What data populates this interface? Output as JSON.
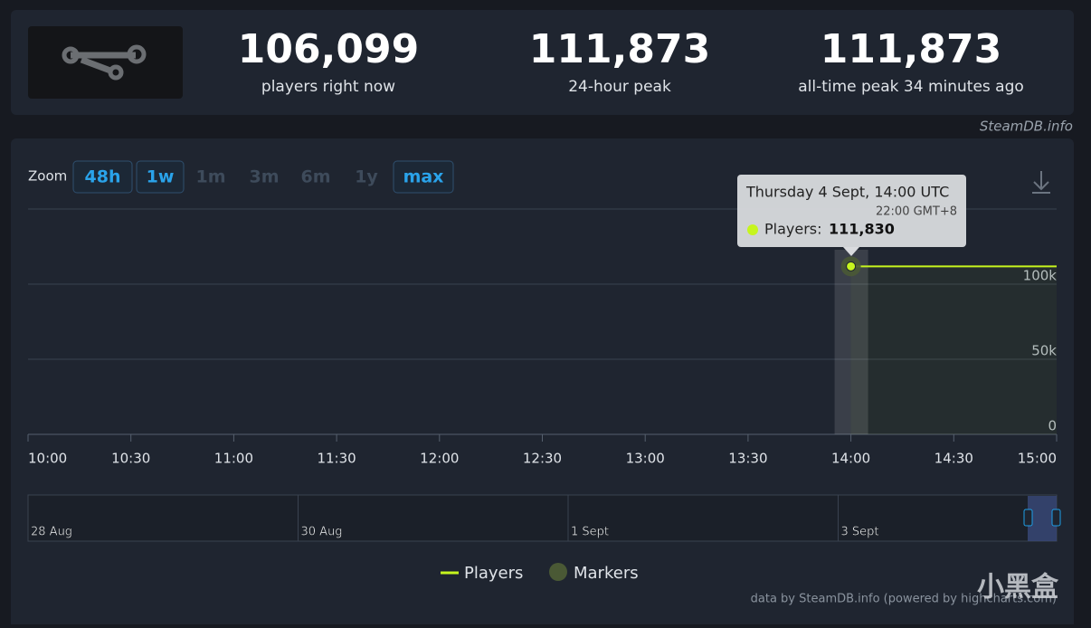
{
  "header": {
    "stats": [
      {
        "value": "106,099",
        "label": "players right now"
      },
      {
        "value": "111,873",
        "label": "24-hour peak"
      },
      {
        "value": "111,873",
        "label": "all-time peak 34 minutes ago"
      }
    ]
  },
  "site_link": "SteamDB.info",
  "zoom": {
    "label": "Zoom",
    "buttons": [
      "48h",
      "1w",
      "1m",
      "3m",
      "6m",
      "1y",
      "max"
    ],
    "active": [
      "48h",
      "1w",
      "max"
    ]
  },
  "tooltip": {
    "title": "Thursday 4 Sept, 14:00 UTC",
    "local_time": "22:00 GMT+8",
    "series_label": "Players:",
    "value": "111,830"
  },
  "chart_data": {
    "type": "line",
    "x": [
      "14:00",
      "15:00"
    ],
    "series": [
      {
        "name": "Players",
        "color": "#c6f51e",
        "values": [
          111830,
          111830
        ]
      }
    ],
    "markers": {
      "name": "Markers",
      "color": "#4a5935"
    },
    "xlim": [
      "10:00",
      "15:00"
    ],
    "xticks": [
      "10:00",
      "10:30",
      "11:00",
      "11:30",
      "12:00",
      "12:30",
      "13:00",
      "13:30",
      "14:00",
      "14:30",
      "15:00"
    ],
    "ylim": [
      0,
      150000
    ],
    "yticks": [
      0,
      {
        "value": 50000,
        "label": "50k"
      },
      {
        "value": 100000,
        "label": "100k"
      }
    ],
    "grid": true
  },
  "navigator": {
    "labels": [
      "28 Aug",
      "30 Aug",
      "1 Sept",
      "3 Sept"
    ]
  },
  "credit": "data by SteamDB.info (powered by highcharts.com)",
  "watermark": "小黑盒"
}
